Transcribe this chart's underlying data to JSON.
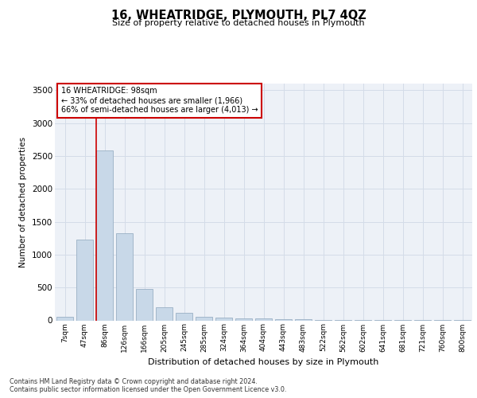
{
  "title": "16, WHEATRIDGE, PLYMOUTH, PL7 4QZ",
  "subtitle": "Size of property relative to detached houses in Plymouth",
  "xlabel": "Distribution of detached houses by size in Plymouth",
  "ylabel": "Number of detached properties",
  "bar_labels": [
    "7sqm",
    "47sqm",
    "86sqm",
    "126sqm",
    "166sqm",
    "205sqm",
    "245sqm",
    "285sqm",
    "324sqm",
    "364sqm",
    "404sqm",
    "443sqm",
    "483sqm",
    "522sqm",
    "562sqm",
    "602sqm",
    "641sqm",
    "681sqm",
    "721sqm",
    "760sqm",
    "800sqm"
  ],
  "bar_values": [
    50,
    1230,
    2580,
    1330,
    480,
    200,
    115,
    60,
    40,
    30,
    25,
    20,
    15,
    10,
    8,
    6,
    5,
    4,
    3,
    3,
    2
  ],
  "bar_color": "#c8d8e8",
  "bar_edge_color": "#9ab0c4",
  "property_line_color": "#cc0000",
  "red_line_index": 2,
  "annotation_text": "16 WHEATRIDGE: 98sqm\n← 33% of detached houses are smaller (1,966)\n66% of semi-detached houses are larger (4,013) →",
  "annotation_box_color": "#ffffff",
  "annotation_box_edge": "#cc0000",
  "ylim": [
    0,
    3600
  ],
  "yticks": [
    0,
    500,
    1000,
    1500,
    2000,
    2500,
    3000,
    3500
  ],
  "grid_color": "#d4dce8",
  "background_color": "#edf1f7",
  "footer_line1": "Contains HM Land Registry data © Crown copyright and database right 2024.",
  "footer_line2": "Contains public sector information licensed under the Open Government Licence v3.0."
}
